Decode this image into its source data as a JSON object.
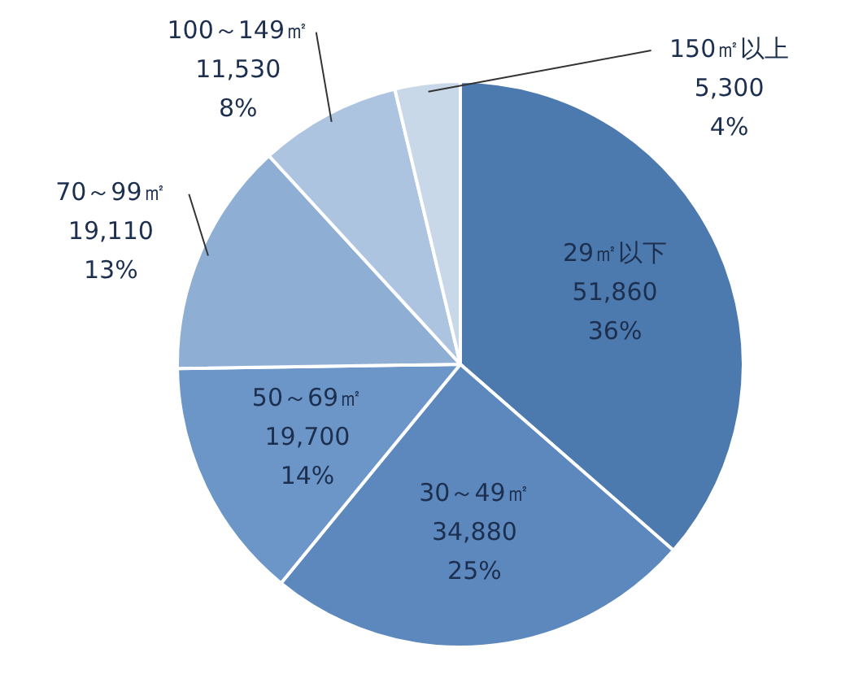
{
  "chart_data": {
    "type": "pie",
    "categories": [
      "29㎡以下",
      "30～49㎡",
      "50～69㎡",
      "70～99㎡",
      "100～149㎡",
      "150㎡以上"
    ],
    "values": [
      51860,
      34880,
      19700,
      19110,
      11530,
      5300
    ],
    "colors": [
      "#4d7aae",
      "#5c88bd",
      "#6c96c8",
      "#8faed4",
      "#adc4e0",
      "#c9d8e8"
    ],
    "value_labels": [
      "51,860\n36%",
      "34,880\n25%",
      "19,700\n14%",
      "19,110\n13%",
      "11,530\n8%",
      "5,300\n4%"
    ],
    "legend": false
  }
}
